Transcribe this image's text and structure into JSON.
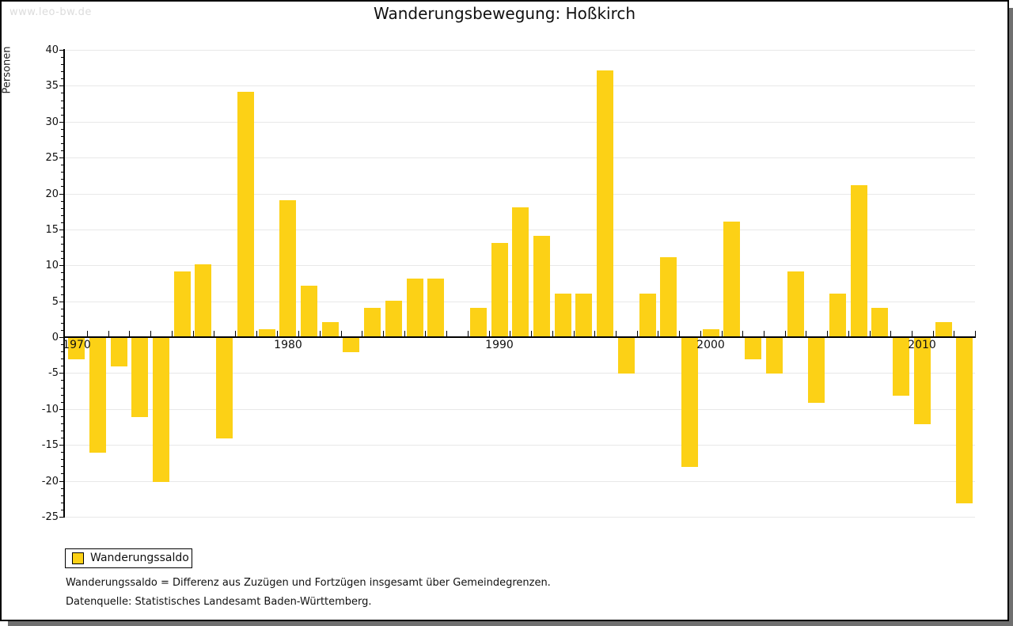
{
  "watermark": "www.leo-bw.de",
  "title": "Wanderungsbewegung: Hoßkirch",
  "legend": {
    "label": "Wanderungssaldo"
  },
  "footnotes": {
    "definition": "Wanderungssaldo = Differenz aus Zuzügen und Fortzügen insgesamt über Gemeindegrenzen.",
    "source": "Datenquelle: Statistisches Landesamt Baden-Württemberg."
  },
  "colors": {
    "bar": "#FCD116",
    "grid": "#E8E8E8",
    "axis": "#000000",
    "watermark": "#DCDCDC",
    "frame_shadow": "#6F6F6F"
  },
  "chart_data": {
    "type": "bar",
    "title": "Wanderungsbewegung: Hoßkirch",
    "xlabel": "",
    "ylabel": "Personen",
    "series_name": "Wanderungssaldo",
    "ylim": [
      -25,
      40
    ],
    "ytick_step": 5,
    "yminor_step": 1,
    "grid": true,
    "legend_position": "bottom-left",
    "xticks_labeled": [
      1970,
      1980,
      1990,
      2000,
      2010
    ],
    "years": [
      1970,
      1971,
      1972,
      1973,
      1974,
      1975,
      1976,
      1977,
      1978,
      1979,
      1980,
      1981,
      1982,
      1983,
      1984,
      1985,
      1986,
      1987,
      1988,
      1989,
      1990,
      1991,
      1992,
      1993,
      1994,
      1995,
      1996,
      1997,
      1998,
      1999,
      2000,
      2001,
      2002,
      2003,
      2004,
      2005,
      2006,
      2007,
      2008,
      2009,
      2010,
      2011,
      2012
    ],
    "values": [
      -3,
      -16,
      -4,
      -11,
      -20,
      9,
      10,
      -14,
      34,
      1,
      19,
      7,
      2,
      -2,
      4,
      5,
      8,
      8,
      0,
      4,
      13,
      18,
      14,
      6,
      6,
      37,
      -5,
      6,
      11,
      -18,
      1,
      16,
      -3,
      -5,
      9,
      -9,
      6,
      21,
      4,
      -8,
      -12,
      2,
      -23
    ]
  }
}
